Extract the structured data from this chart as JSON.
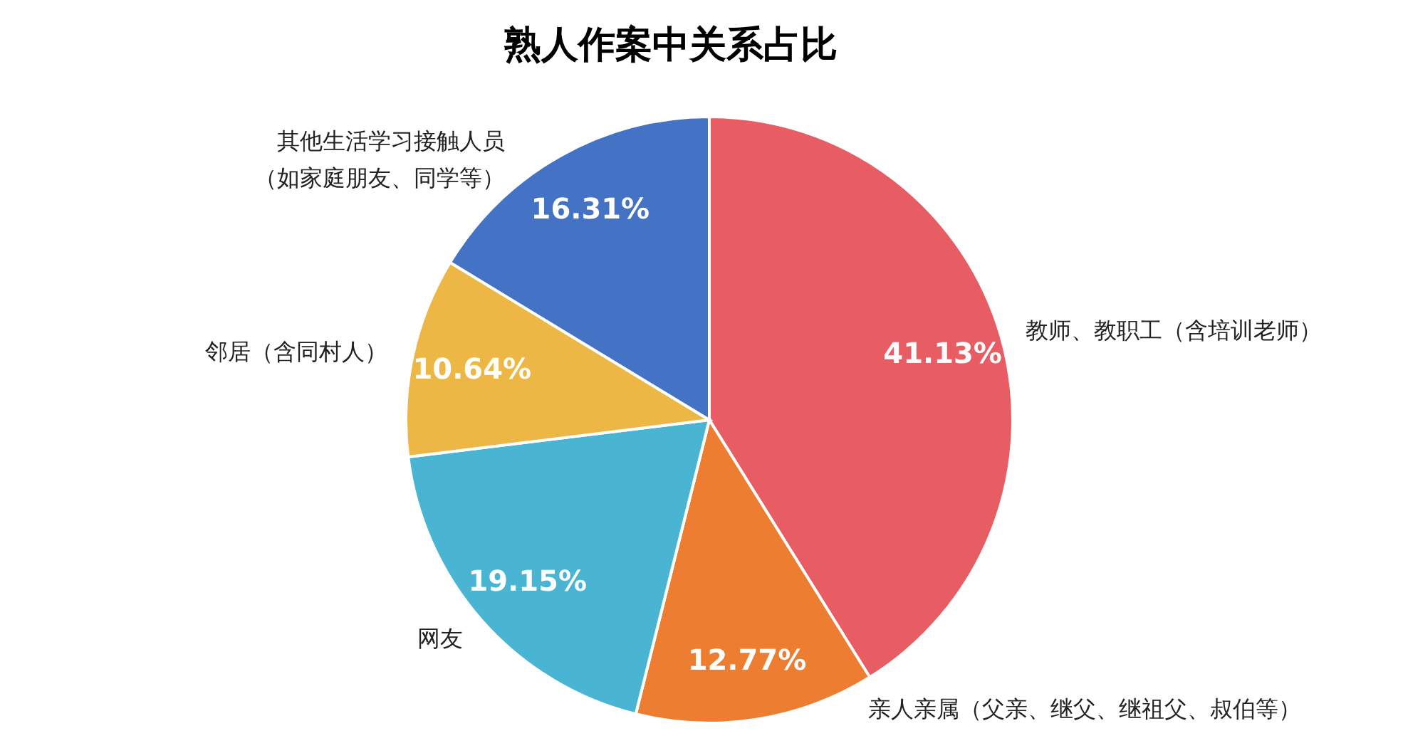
{
  "chart_data": {
    "type": "pie",
    "title": "熟人作案中关系占比",
    "categories": [
      "教师、教职工（含培训老师）",
      "亲人亲属（父亲、继父、继祖父、叔伯等）",
      "网友",
      "邻居（含同村人）",
      "其他生活学习接触人员（如家庭朋友、同学等）"
    ],
    "values": [
      41.13,
      12.77,
      19.15,
      10.64,
      16.31
    ],
    "colors": [
      "#e85c63",
      "#ed7d31",
      "#4ab5d3",
      "#ecb744",
      "#4472c4"
    ],
    "value_labels": [
      "41.13%",
      "12.77%",
      "19.15%",
      "10.64%",
      "16.31%"
    ]
  }
}
